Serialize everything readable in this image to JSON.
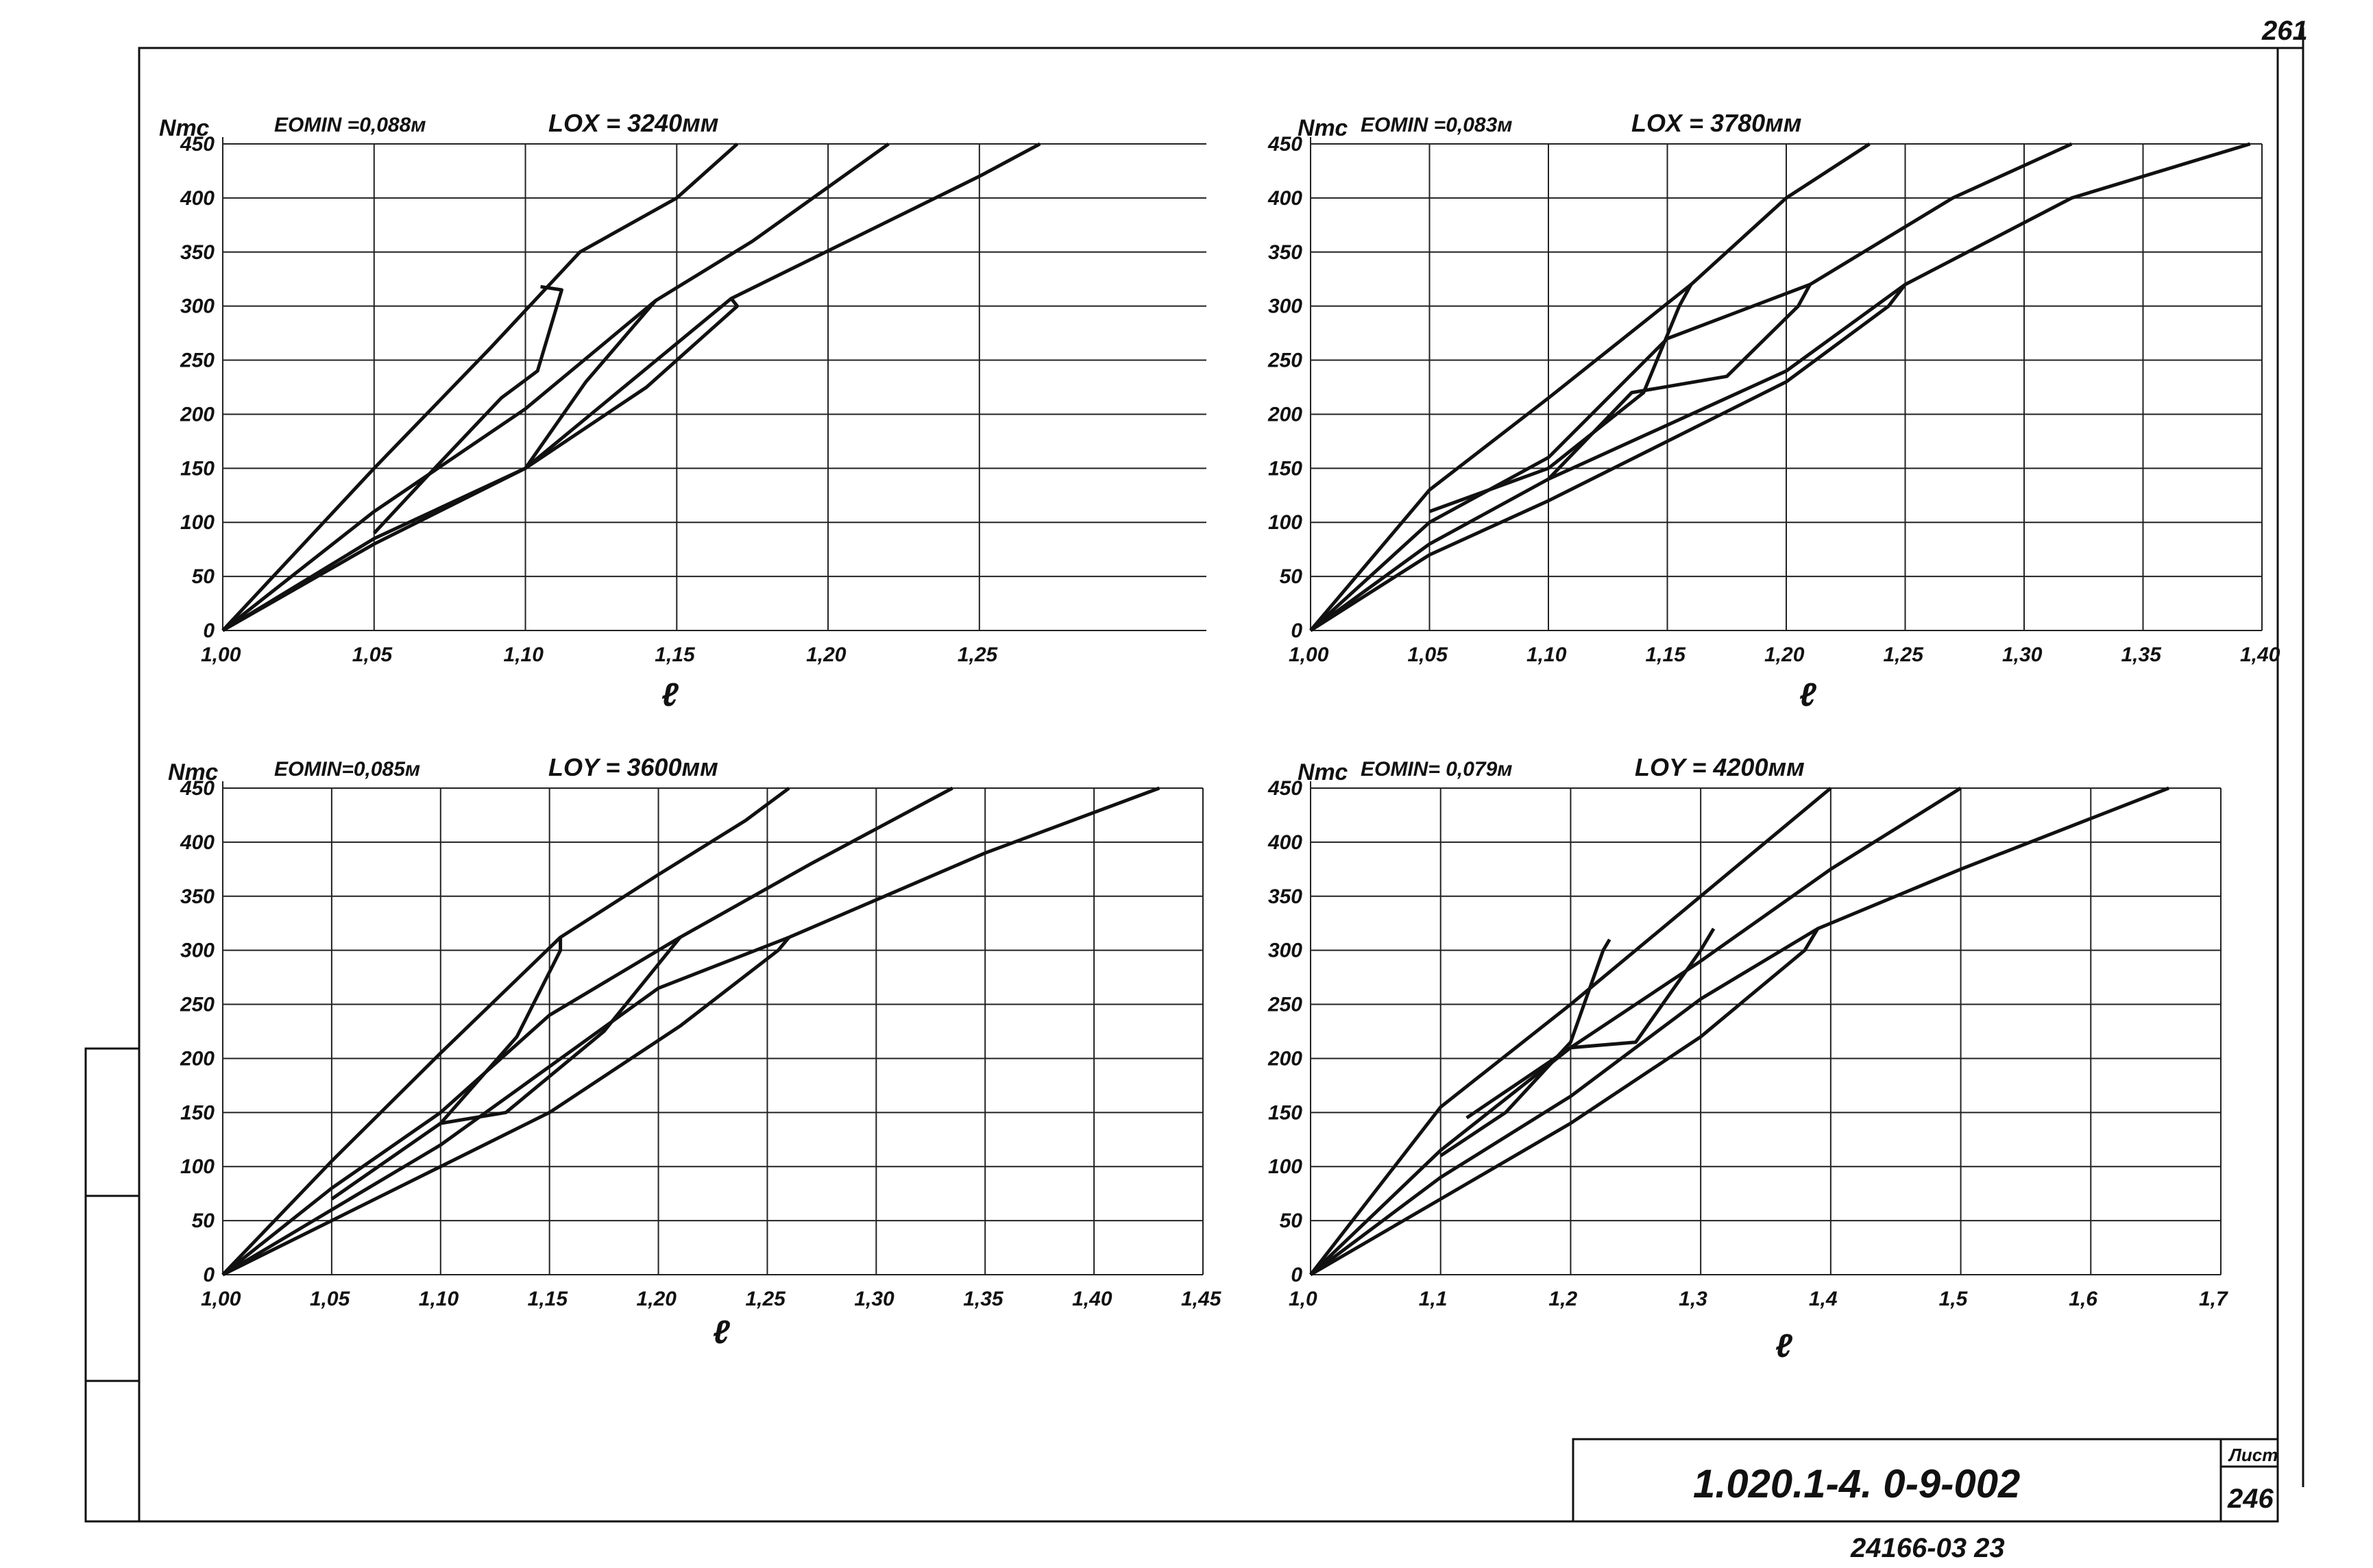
{
  "page_number": "261",
  "doc_code": "1.020.1-4.  0-9-002",
  "sheet_label": "Лист",
  "sheet_number": "246",
  "bottom_code": "24166-03   23",
  "chart_data": [
    {
      "type": "line",
      "ylabel": "Nтс",
      "xlabel": "ℓ",
      "title_left": "EOMIN =0,088м",
      "title_right": "LOX = 3240мм",
      "xlim": [
        1.0,
        1.325
      ],
      "ylim": [
        0,
        450
      ],
      "xticks": [
        1.0,
        1.05,
        1.1,
        1.15,
        1.2,
        1.25
      ],
      "xtick_labels": [
        "1,00",
        "1,05",
        "1,10",
        "1,15",
        "1,20",
        "1,25"
      ],
      "yticks": [
        0,
        50,
        100,
        150,
        200,
        250,
        300,
        350,
        400,
        450
      ],
      "ytick_labels": [
        "0",
        "50",
        "100",
        "150",
        "200",
        "250",
        "300",
        "350",
        "400",
        "450"
      ],
      "series": [
        {
          "points": [
            [
              1.0,
              0
            ],
            [
              1.05,
              150
            ],
            [
              1.088,
              260
            ],
            [
              1.118,
              350
            ],
            [
              1.15,
              400
            ],
            [
              1.17,
              450
            ]
          ]
        },
        {
          "points": [
            [
              1.0,
              0
            ],
            [
              1.05,
              110
            ],
            [
              1.1,
              205
            ],
            [
              1.143,
              305
            ],
            [
              1.175,
              360
            ],
            [
              1.22,
              450
            ]
          ]
        },
        {
          "points": [
            [
              1.0,
              0
            ],
            [
              1.05,
              85
            ],
            [
              1.1,
              150
            ],
            [
              1.168,
              307
            ],
            [
              1.25,
              420
            ],
            [
              1.27,
              450
            ]
          ]
        },
        {
          "points": [
            [
              1.0,
              0
            ],
            [
              1.05,
              80
            ],
            [
              1.1,
              150
            ],
            [
              1.14,
              225
            ],
            [
              1.17,
              300
            ],
            [
              1.168,
              307
            ]
          ]
        },
        {
          "points": [
            [
              1.1,
              150
            ],
            [
              1.12,
              230
            ],
            [
              1.143,
              305
            ]
          ]
        },
        {
          "points": [
            [
              1.05,
              90
            ],
            [
              1.07,
              150
            ],
            [
              1.092,
              215
            ],
            [
              1.104,
              240
            ],
            [
              1.112,
              315
            ],
            [
              1.105,
              318
            ]
          ]
        }
      ]
    },
    {
      "type": "line",
      "ylabel": "Nтс",
      "xlabel": "ℓ",
      "title_left": "EOMIN =0,083м",
      "title_right": "LOX = 3780мм",
      "xlim": [
        1.0,
        1.4
      ],
      "ylim": [
        0,
        450
      ],
      "xticks": [
        1.0,
        1.05,
        1.1,
        1.15,
        1.2,
        1.25,
        1.3,
        1.35,
        1.4
      ],
      "xtick_labels": [
        "1,00",
        "1,05",
        "1,10",
        "1,15",
        "1,20",
        "1,25",
        "1,30",
        "1,35",
        "1,40"
      ],
      "yticks": [
        0,
        50,
        100,
        150,
        200,
        250,
        300,
        350,
        400,
        450
      ],
      "ytick_labels": [
        "0",
        "50",
        "100",
        "150",
        "200",
        "250",
        "300",
        "350",
        "400",
        "450"
      ],
      "series": [
        {
          "points": [
            [
              1.0,
              0
            ],
            [
              1.05,
              130
            ],
            [
              1.1,
              215
            ],
            [
              1.16,
              320
            ],
            [
              1.2,
              400
            ],
            [
              1.235,
              450
            ]
          ]
        },
        {
          "points": [
            [
              1.0,
              0
            ],
            [
              1.05,
              100
            ],
            [
              1.1,
              160
            ],
            [
              1.15,
              270
            ],
            [
              1.21,
              320
            ],
            [
              1.27,
              400
            ],
            [
              1.32,
              450
            ]
          ]
        },
        {
          "points": [
            [
              1.0,
              0
            ],
            [
              1.05,
              80
            ],
            [
              1.1,
              140
            ],
            [
              1.2,
              240
            ],
            [
              1.25,
              320
            ],
            [
              1.32,
              400
            ],
            [
              1.395,
              450
            ]
          ]
        },
        {
          "points": [
            [
              1.0,
              0
            ],
            [
              1.05,
              70
            ],
            [
              1.1,
              120
            ],
            [
              1.2,
              230
            ],
            [
              1.243,
              300
            ],
            [
              1.25,
              320
            ]
          ]
        },
        {
          "points": [
            [
              1.1,
              140
            ],
            [
              1.135,
              220
            ],
            [
              1.175,
              235
            ],
            [
              1.205,
              300
            ],
            [
              1.21,
              320
            ]
          ]
        },
        {
          "points": [
            [
              1.05,
              110
            ],
            [
              1.1,
              150
            ],
            [
              1.14,
              220
            ],
            [
              1.155,
              300
            ],
            [
              1.16,
              320
            ]
          ]
        }
      ]
    },
    {
      "type": "line",
      "ylabel": "Nтс",
      "xlabel": "ℓ",
      "title_left": "EOMIN=0,085м",
      "title_right": "LOY = 3600мм",
      "xlim": [
        1.0,
        1.45
      ],
      "ylim": [
        0,
        450
      ],
      "xticks": [
        1.0,
        1.05,
        1.1,
        1.15,
        1.2,
        1.25,
        1.3,
        1.35,
        1.4,
        1.45
      ],
      "xtick_labels": [
        "1,00",
        "1,05",
        "1,10",
        "1,15",
        "1,20",
        "1,25",
        "1,30",
        "1,35",
        "1,40",
        "1,45"
      ],
      "yticks": [
        0,
        50,
        100,
        150,
        200,
        250,
        300,
        350,
        400,
        450
      ],
      "ytick_labels": [
        "0",
        "50",
        "100",
        "150",
        "200",
        "250",
        "300",
        "350",
        "400",
        "450"
      ],
      "series": [
        {
          "points": [
            [
              1.0,
              0
            ],
            [
              1.05,
              105
            ],
            [
              1.1,
              205
            ],
            [
              1.155,
              312
            ],
            [
              1.2,
              370
            ],
            [
              1.24,
              420
            ],
            [
              1.26,
              450
            ]
          ]
        },
        {
          "points": [
            [
              1.0,
              0
            ],
            [
              1.05,
              80
            ],
            [
              1.1,
              150
            ],
            [
              1.15,
              240
            ],
            [
              1.21,
              312
            ],
            [
              1.27,
              380
            ],
            [
              1.335,
              450
            ]
          ]
        },
        {
          "points": [
            [
              1.0,
              0
            ],
            [
              1.05,
              60
            ],
            [
              1.1,
              120
            ],
            [
              1.2,
              265
            ],
            [
              1.26,
              312
            ],
            [
              1.35,
              390
            ],
            [
              1.43,
              450
            ]
          ]
        },
        {
          "points": [
            [
              1.0,
              0
            ],
            [
              1.05,
              50
            ],
            [
              1.1,
              100
            ],
            [
              1.15,
              150
            ],
            [
              1.21,
              230
            ],
            [
              1.255,
              300
            ],
            [
              1.26,
              312
            ]
          ]
        },
        {
          "points": [
            [
              1.1,
              140
            ],
            [
              1.13,
              150
            ],
            [
              1.175,
              225
            ],
            [
              1.21,
              312
            ]
          ]
        },
        {
          "points": [
            [
              1.05,
              70
            ],
            [
              1.1,
              140
            ],
            [
              1.135,
              220
            ],
            [
              1.155,
              300
            ],
            [
              1.155,
              312
            ]
          ]
        }
      ]
    },
    {
      "type": "line",
      "ylabel": "Nтс",
      "xlabel": "ℓ",
      "title_left": "EOMIN= 0,079м",
      "title_right": "LOY = 4200мм",
      "xlim": [
        1.0,
        1.7
      ],
      "ylim": [
        0,
        450
      ],
      "xticks": [
        1.0,
        1.1,
        1.2,
        1.3,
        1.4,
        1.5,
        1.6,
        1.7
      ],
      "xtick_labels": [
        "1,0",
        "1,1",
        "1,2",
        "1,3",
        "1,4",
        "1,5",
        "1,6",
        "1,7"
      ],
      "yticks": [
        0,
        50,
        100,
        150,
        200,
        250,
        300,
        350,
        400,
        450
      ],
      "ytick_labels": [
        "0",
        "50",
        "100",
        "150",
        "200",
        "250",
        "300",
        "350",
        "400",
        "450"
      ],
      "series": [
        {
          "points": [
            [
              1.0,
              0
            ],
            [
              1.1,
              155
            ],
            [
              1.2,
              250
            ],
            [
              1.3,
              350
            ],
            [
              1.35,
              400
            ],
            [
              1.4,
              450
            ]
          ]
        },
        {
          "points": [
            [
              1.0,
              0
            ],
            [
              1.1,
              115
            ],
            [
              1.2,
              210
            ],
            [
              1.3,
              290
            ],
            [
              1.4,
              375
            ],
            [
              1.5,
              450
            ]
          ]
        },
        {
          "points": [
            [
              1.0,
              0
            ],
            [
              1.1,
              90
            ],
            [
              1.2,
              165
            ],
            [
              1.3,
              255
            ],
            [
              1.39,
              320
            ],
            [
              1.5,
              375
            ],
            [
              1.66,
              450
            ]
          ]
        },
        {
          "points": [
            [
              1.0,
              0
            ],
            [
              1.1,
              70
            ],
            [
              1.2,
              140
            ],
            [
              1.3,
              220
            ],
            [
              1.38,
              300
            ],
            [
              1.39,
              320
            ]
          ]
        },
        {
          "points": [
            [
              1.12,
              145
            ],
            [
              1.2,
              210
            ],
            [
              1.25,
              215
            ],
            [
              1.3,
              300
            ],
            [
              1.31,
              320
            ]
          ]
        },
        {
          "points": [
            [
              1.1,
              110
            ],
            [
              1.15,
              150
            ],
            [
              1.2,
              215
            ],
            [
              1.225,
              300
            ],
            [
              1.23,
              310
            ]
          ]
        }
      ]
    }
  ]
}
